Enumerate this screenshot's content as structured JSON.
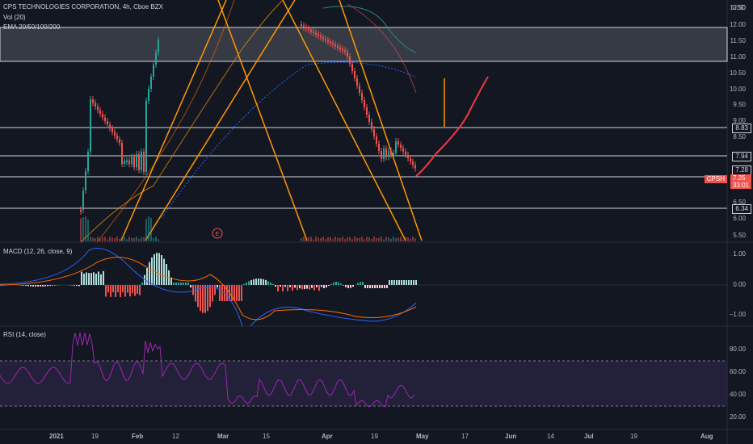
{
  "header": {
    "symbol_line": "CPS TECHNOLOGIES CORPORATION, 4h, Cboe BZX",
    "volume_label": "Vol (20)",
    "ema_label": "EMA 20/50/100/200"
  },
  "price_pane": {
    "currency": "USD",
    "axis_ticks": [
      "12.50",
      "12.00",
      "11.50",
      "11.00",
      "10.50",
      "10.00",
      "9.50",
      "9.00",
      "8.50",
      "6.50",
      "6.00",
      "5.50"
    ],
    "levels": [
      "8.83",
      "7.94",
      "7.28",
      "6.34"
    ],
    "ticker_tag": "CPSH",
    "last_price": "7.25",
    "countdown": "33:01",
    "earnings_marker": "E"
  },
  "macd_pane": {
    "label": "MACD (12, 26, close, 9)",
    "axis_ticks": [
      "1.00",
      "0.00",
      "−1.00"
    ]
  },
  "rsi_pane": {
    "label": "RSI (14, close)",
    "axis_ticks": [
      "80.00",
      "60.00",
      "40.00",
      "20.00"
    ]
  },
  "time_axis": {
    "labels": [
      "2021",
      "19",
      "Feb",
      "12",
      "Mar",
      "15",
      "Apr",
      "19",
      "May",
      "17",
      "Jun",
      "14",
      "Jul",
      "19",
      "Aug"
    ]
  },
  "colors": {
    "background": "#131722",
    "up": "#26a69a",
    "down": "#ef5350",
    "projection": "#f23645",
    "trendline": "#ff9800",
    "level_line": "#d1d4dc",
    "macd_line": "#2962ff",
    "signal_line": "#ff6d00",
    "rsi_line": "#9c27b0"
  }
}
